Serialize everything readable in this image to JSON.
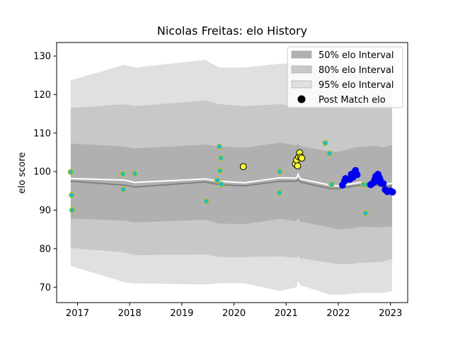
{
  "chart_data": {
    "type": "scatter",
    "title": "Nicolas Freitas: elo History",
    "xlabel": "",
    "ylabel": "elo score",
    "xlim": [
      2016.6,
      2023.33
    ],
    "ylim": [
      66.0,
      133.5
    ],
    "x_ticks": [
      2017,
      2018,
      2019,
      2020,
      2021,
      2022,
      2023
    ],
    "y_ticks": [
      70,
      80,
      90,
      100,
      110,
      120,
      130
    ],
    "grid": false,
    "legend_position": "top-right",
    "legend": [
      {
        "label": "50% elo Interval",
        "color": "#b0b0b0",
        "kind": "patch"
      },
      {
        "label": "80% elo Interval",
        "color": "#c8c8c8",
        "kind": "patch"
      },
      {
        "label": "95% elo Interval",
        "color": "#e0e0e0",
        "kind": "patch"
      },
      {
        "label": "Post Match elo",
        "color": "#000000",
        "kind": "marker"
      }
    ],
    "bands": {
      "x": [
        2016.87,
        2017.9,
        2018.1,
        2019.45,
        2019.72,
        2020.2,
        2020.88,
        2021.2,
        2021.23,
        2021.27,
        2021.85,
        2022.0,
        2022.25,
        2022.4,
        2022.6,
        2022.75,
        2022.85,
        2023.03
      ],
      "median": [
        97.5,
        96.5,
        96.0,
        97.3,
        96.6,
        96.3,
        97.5,
        97.5,
        98.0,
        97.3,
        95.6,
        95.6,
        96.1,
        96.5,
        96.4,
        96.5,
        96.0,
        96.3
      ],
      "p25": [
        87.8,
        87.3,
        86.8,
        87.5,
        86.5,
        86.4,
        87.7,
        87.2,
        88.0,
        87.0,
        85.5,
        85.0,
        85.3,
        85.6,
        85.7,
        85.5,
        85.6,
        85.8
      ],
      "p75": [
        107.3,
        106.5,
        106.0,
        107.0,
        106.5,
        106.2,
        107.5,
        106.8,
        107.4,
        106.6,
        105.2,
        105.1,
        106.0,
        106.4,
        106.6,
        106.6,
        106.3,
        106.9
      ],
      "p10": [
        80.2,
        79.0,
        78.3,
        78.5,
        77.8,
        77.8,
        78.0,
        77.6,
        78.2,
        77.5,
        76.3,
        76.0,
        76.0,
        76.3,
        76.4,
        76.6,
        76.6,
        77.3
      ],
      "p90": [
        116.5,
        117.5,
        117.0,
        118.5,
        117.5,
        117.0,
        117.5,
        117.0,
        117.7,
        117.0,
        117.0,
        117.0,
        117.5,
        117.5,
        117.5,
        117.2,
        117.3,
        117.5
      ],
      "p2_5": [
        75.5,
        71.3,
        71.0,
        70.7,
        71.0,
        71.0,
        69.0,
        70.0,
        71.5,
        70.5,
        68.0,
        68.0,
        68.3,
        68.5,
        68.5,
        68.5,
        68.5,
        69.0
      ],
      "p97_5": [
        123.7,
        127.7,
        127.0,
        129.0,
        127.0,
        127.0,
        128.0,
        128.0,
        128.5,
        128.0,
        126.5,
        126.5,
        128.5,
        128.8,
        128.0,
        126.3,
        127.5,
        128.0
      ]
    },
    "post_match_line": {
      "x": [
        2016.87,
        2017.9,
        2018.1,
        2019.45,
        2019.72,
        2020.2,
        2020.88,
        2021.2,
        2021.23,
        2021.27,
        2021.85,
        2022.0,
        2022.25,
        2022.4,
        2022.6,
        2022.75,
        2022.85,
        2023.03
      ],
      "y": [
        98.2,
        97.8,
        97.2,
        98.1,
        97.5,
        97.1,
        98.4,
        98.3,
        99.3,
        98.1,
        96.5,
        96.3,
        96.8,
        97.2,
        97.1,
        97.0,
        96.6,
        97.0
      ]
    },
    "series": [
      {
        "name": "",
        "fill": "#17becf",
        "stroke": "#bcbd22",
        "x": [
          2016.87,
          2016.89,
          2016.9,
          2017.87,
          2017.88,
          2018.1,
          2019.47,
          2019.68,
          2019.72,
          2019.73,
          2019.75,
          2019.76,
          2020.87,
          2020.88,
          2021.75,
          2021.83,
          2021.87,
          2022.48,
          2022.52,
          2022.55
        ],
        "y": [
          99.9,
          93.9,
          90.0,
          99.4,
          95.4,
          99.5,
          92.3,
          97.7,
          106.5,
          100.2,
          103.5,
          96.7,
          94.5,
          100.0,
          107.4,
          104.7,
          96.7,
          96.6,
          89.2,
          96.6
        ]
      },
      {
        "name": "",
        "fill": "#ffff33",
        "stroke": "#000000",
        "x": [
          2020.18,
          2021.18,
          2021.2,
          2021.22,
          2021.24,
          2021.26,
          2021.28,
          2021.3
        ],
        "y": [
          101.3,
          102.0,
          103.0,
          101.5,
          103.8,
          104.9,
          103.8,
          103.5
        ]
      },
      {
        "name": "",
        "fill": "#0000ee",
        "stroke": "#0000ee",
        "x": [
          2022.08,
          2022.12,
          2022.14,
          2022.22,
          2022.25,
          2022.28,
          2022.3,
          2022.33,
          2022.36,
          2022.62,
          2022.66,
          2022.7,
          2022.72,
          2022.74,
          2022.76,
          2022.78,
          2022.8,
          2022.82,
          2022.86,
          2022.9,
          2022.94,
          2023.0,
          2023.04
        ],
        "y": [
          96.5,
          97.5,
          98.2,
          98.0,
          99.3,
          98.5,
          99.6,
          100.3,
          99.2,
          96.6,
          97.0,
          98.0,
          98.8,
          97.5,
          99.3,
          98.6,
          98.0,
          97.0,
          96.9,
          95.3,
          94.8,
          95.0,
          94.7
        ]
      }
    ]
  }
}
